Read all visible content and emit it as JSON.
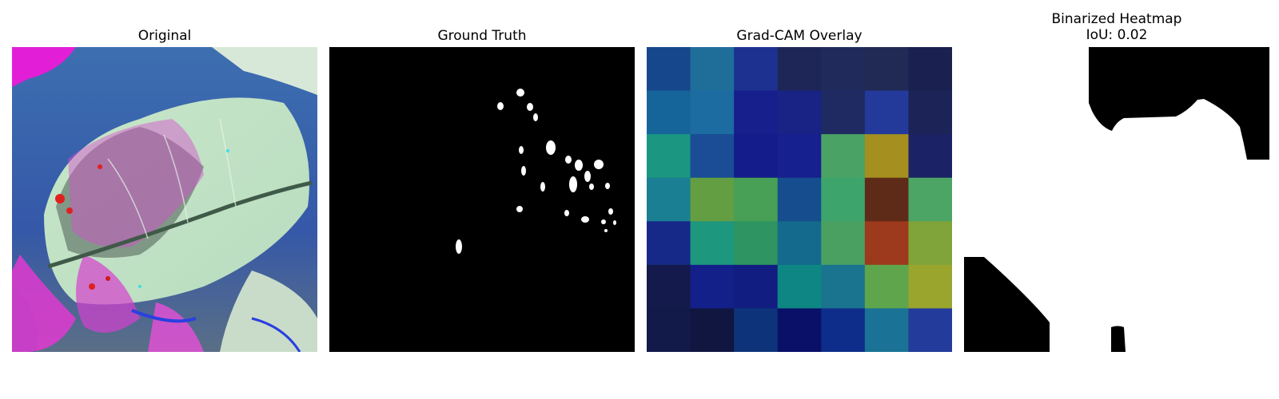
{
  "panels": {
    "original": {
      "title": "Original"
    },
    "ground_truth": {
      "title": "Ground Truth"
    },
    "gradcam": {
      "title": "Grad-CAM Overlay",
      "grid": [
        [
          "#16478c",
          "#1f6e9a",
          "#1d3190",
          "#1e2658",
          "#202b5c",
          "#202a55",
          "#1a2050"
        ],
        [
          "#16659a",
          "#1c6ba1",
          "#171f8c",
          "#182385",
          "#1f2a62",
          "#243a9b",
          "#1c2356"
        ],
        [
          "#1a9681",
          "#1a4d95",
          "#141c8c",
          "#17208f",
          "#4aa364",
          "#a58f1e",
          "#1b2265"
        ],
        [
          "#1a7f92",
          "#639e42",
          "#47a056",
          "#154d8e",
          "#3da56c",
          "#5e2b18",
          "#4ca565"
        ],
        [
          "#162989",
          "#1e977f",
          "#2d9462",
          "#136a8c",
          "#4aa061",
          "#9d391c",
          "#80a33a"
        ],
        [
          "#141a4c",
          "#13208a",
          "#111d80",
          "#0e8784",
          "#1a7490",
          "#5fa54b",
          "#99a52c"
        ],
        [
          "#121a49",
          "#10163f",
          "#0d347a",
          "#0a1068",
          "#0e2d8a",
          "#1a7396",
          "#233c9b"
        ]
      ]
    },
    "binarized": {
      "title_line1": "Binarized Heatmap",
      "title_line2": "IoU: 0.02"
    }
  }
}
